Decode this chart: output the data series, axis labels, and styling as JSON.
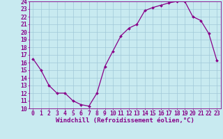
{
  "x": [
    0,
    1,
    2,
    3,
    4,
    5,
    6,
    7,
    8,
    9,
    10,
    11,
    12,
    13,
    14,
    15,
    16,
    17,
    18,
    19,
    20,
    21,
    22,
    23
  ],
  "y": [
    16.5,
    15.0,
    13.0,
    12.0,
    12.0,
    11.0,
    10.5,
    10.3,
    12.0,
    15.5,
    17.5,
    19.5,
    20.5,
    21.0,
    22.8,
    23.2,
    23.5,
    23.8,
    24.0,
    24.0,
    22.0,
    21.5,
    19.8,
    16.3
  ],
  "line_color": "#880088",
  "marker_color": "#880088",
  "bg_color": "#c8eaf0",
  "grid_color": "#a0c8d8",
  "xlabel": "Windchill (Refroidissement éolien,°C)",
  "ylim": [
    10,
    24
  ],
  "xlim": [
    0,
    23
  ],
  "yticks": [
    10,
    11,
    12,
    13,
    14,
    15,
    16,
    17,
    18,
    19,
    20,
    21,
    22,
    23,
    24
  ],
  "xticks": [
    0,
    1,
    2,
    3,
    4,
    5,
    6,
    7,
    8,
    9,
    10,
    11,
    12,
    13,
    14,
    15,
    16,
    17,
    18,
    19,
    20,
    21,
    22,
    23
  ],
  "tick_color": "#880088",
  "axis_label_color": "#880088",
  "font_family": "monospace",
  "xlabel_fontsize": 6.5,
  "tick_fontsize": 5.8,
  "linewidth": 0.9,
  "markersize": 2.0
}
